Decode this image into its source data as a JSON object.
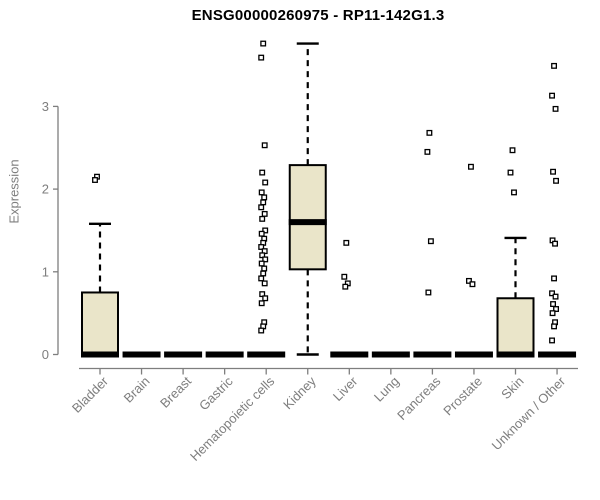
{
  "chart_data": {
    "type": "boxplot",
    "title": "ENSG00000260975 - RP11-142G1.3",
    "ylabel": "Expression",
    "xlabel": "",
    "ylim": [
      0,
      3.95
    ],
    "yticks": [
      0,
      1,
      2,
      3
    ],
    "grid": false,
    "legend": "none",
    "box_fill_color": "#EAE5C9",
    "box_border_color": "#000000",
    "axis_color": "#7E7E7E",
    "outlier_shape": "open-square",
    "categories": [
      "Bladder",
      "Brain",
      "Breast",
      "Gastric",
      "Hematopoietic cells",
      "Kidney",
      "Liver",
      "Lung",
      "Pancreas",
      "Prostate",
      "Skin",
      "Unknown / Other"
    ],
    "series": [
      {
        "name": "Bladder",
        "q1": 0,
        "median": 0,
        "q3": 0.75,
        "whisker_low": 0,
        "whisker_high": 1.58,
        "outliers": [
          2.15,
          2.11
        ]
      },
      {
        "name": "Brain",
        "q1": 0,
        "median": 0,
        "q3": 0,
        "whisker_low": 0,
        "whisker_high": 0,
        "outliers": []
      },
      {
        "name": "Breast",
        "q1": 0,
        "median": 0,
        "q3": 0,
        "whisker_low": 0,
        "whisker_high": 0,
        "outliers": []
      },
      {
        "name": "Gastric",
        "q1": 0,
        "median": 0,
        "q3": 0,
        "whisker_low": 0,
        "whisker_high": 0,
        "outliers": []
      },
      {
        "name": "Hematopoietic cells",
        "q1": 0,
        "median": 0,
        "q3": 0,
        "whisker_low": 0,
        "whisker_high": 0,
        "outliers": [
          3.76,
          3.59,
          2.53,
          2.2,
          2.08,
          1.96,
          1.9,
          1.84,
          1.78,
          1.7,
          1.64,
          1.5,
          1.46,
          1.4,
          1.35,
          1.3,
          1.25,
          1.2,
          1.15,
          1.1,
          1.04,
          0.98,
          0.92,
          0.86,
          0.73,
          0.68,
          0.62,
          0.39,
          0.34,
          0.29
        ]
      },
      {
        "name": "Kidney",
        "q1": 1.03,
        "median": 1.6,
        "q3": 2.29,
        "whisker_low": 0,
        "whisker_high": 3.76,
        "outliers": []
      },
      {
        "name": "Liver",
        "q1": 0,
        "median": 0,
        "q3": 0,
        "whisker_low": 0,
        "whisker_high": 0,
        "outliers": [
          1.35,
          0.94,
          0.86,
          0.82
        ]
      },
      {
        "name": "Lung",
        "q1": 0,
        "median": 0,
        "q3": 0,
        "whisker_low": 0,
        "whisker_high": 0,
        "outliers": []
      },
      {
        "name": "Pancreas",
        "q1": 0,
        "median": 0,
        "q3": 0,
        "whisker_low": 0,
        "whisker_high": 0,
        "outliers": [
          2.68,
          2.45,
          1.37,
          0.75
        ]
      },
      {
        "name": "Prostate",
        "q1": 0,
        "median": 0,
        "q3": 0,
        "whisker_low": 0,
        "whisker_high": 0,
        "outliers": [
          2.27,
          0.89,
          0.85
        ]
      },
      {
        "name": "Skin",
        "q1": 0,
        "median": 0,
        "q3": 0.68,
        "whisker_low": 0,
        "whisker_high": 1.41,
        "outliers": [
          2.47,
          2.2,
          1.96
        ]
      },
      {
        "name": "Unknown / Other",
        "q1": 0,
        "median": 0,
        "q3": 0,
        "whisker_low": 0,
        "whisker_high": 0,
        "outliers": [
          3.49,
          3.13,
          2.97,
          2.21,
          2.1,
          1.38,
          1.34,
          0.92,
          0.74,
          0.7,
          0.61,
          0.55,
          0.5,
          0.39,
          0.34,
          0.17
        ]
      }
    ]
  }
}
